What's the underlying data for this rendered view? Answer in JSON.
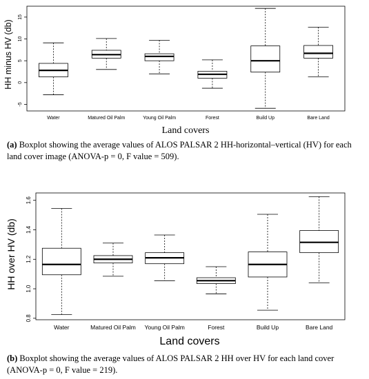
{
  "charts": [
    {
      "chart_data": {
        "type": "boxplot",
        "title": "",
        "xlabel": "Land covers",
        "ylabel": "HH minus HV (db)",
        "ylim": [
          -6.5,
          17.5
        ],
        "yticks": [
          -5,
          0,
          5,
          10,
          15
        ],
        "ytick_labels": [
          "-5",
          "0",
          "5",
          "10",
          "15"
        ],
        "grid": false,
        "categories": [
          "Water",
          "Matured Oil Palm",
          "Young Oil Palm",
          "Forest",
          "Build Up",
          "Bare Land"
        ],
        "boxes": [
          {
            "category": "Water",
            "whisker_low": -2.8,
            "q1": 1.3,
            "median": 2.8,
            "q3": 4.4,
            "whisker_high": 9.1
          },
          {
            "category": "Matured Oil Palm",
            "whisker_low": 3.0,
            "q1": 5.6,
            "median": 6.4,
            "q3": 7.4,
            "whisker_high": 10.1
          },
          {
            "category": "Young Oil Palm",
            "whisker_low": 2.0,
            "q1": 5.0,
            "median": 6.0,
            "q3": 6.6,
            "whisker_high": 9.7
          },
          {
            "category": "Forest",
            "whisker_low": -1.3,
            "q1": 1.0,
            "median": 1.9,
            "q3": 2.6,
            "whisker_high": 5.2
          },
          {
            "category": "Build Up",
            "whisker_low": -5.9,
            "q1": 2.4,
            "median": 5.0,
            "q3": 8.4,
            "whisker_high": 17.0
          },
          {
            "category": "Bare Land",
            "whisker_low": 1.3,
            "q1": 5.6,
            "median": 6.7,
            "q3": 8.5,
            "whisker_high": 12.7
          }
        ]
      },
      "caption": {
        "label": "(a)",
        "text": " Boxplot showing the average values of ALOS PALSAR 2 HH-horizontal–vertical (HV) for each land cover image (ANOVA-p = 0, F value = 509)."
      }
    },
    {
      "chart_data": {
        "type": "boxplot",
        "title": "",
        "xlabel": "Land covers",
        "ylabel": "HH over HV (db)",
        "ylim": [
          0.79,
          1.65
        ],
        "yticks": [
          0.8,
          1.0,
          1.2,
          1.4,
          1.6
        ],
        "ytick_labels": [
          "0.8",
          "1.0",
          "1.2",
          "1.4",
          "1.6"
        ],
        "grid": false,
        "categories": [
          "Water",
          "Matured Oil Palm",
          "Young Oil Palm",
          "Forest",
          "Build Up",
          "Bare Land"
        ],
        "boxes": [
          {
            "category": "Water",
            "whisker_low": 0.825,
            "q1": 1.095,
            "median": 1.165,
            "q3": 1.275,
            "whisker_high": 1.545
          },
          {
            "category": "Matured Oil Palm",
            "whisker_low": 1.085,
            "q1": 1.175,
            "median": 1.2,
            "q3": 1.225,
            "whisker_high": 1.31
          },
          {
            "category": "Young Oil Palm",
            "whisker_low": 1.055,
            "q1": 1.17,
            "median": 1.21,
            "q3": 1.245,
            "whisker_high": 1.365
          },
          {
            "category": "Forest",
            "whisker_low": 0.965,
            "q1": 1.035,
            "median": 1.055,
            "q3": 1.075,
            "whisker_high": 1.15
          },
          {
            "category": "Build Up",
            "whisker_low": 0.855,
            "q1": 1.08,
            "median": 1.165,
            "q3": 1.25,
            "whisker_high": 1.505
          },
          {
            "category": "Bare Land",
            "whisker_low": 1.04,
            "q1": 1.245,
            "median": 1.315,
            "q3": 1.395,
            "whisker_high": 1.625
          }
        ]
      },
      "caption": {
        "label": "(b)",
        "text": " Boxplot showing the average values of ALOS PALSAR 2 HH over HV for each land cover (ANOVA-p = 0, F value = 219)."
      }
    }
  ]
}
